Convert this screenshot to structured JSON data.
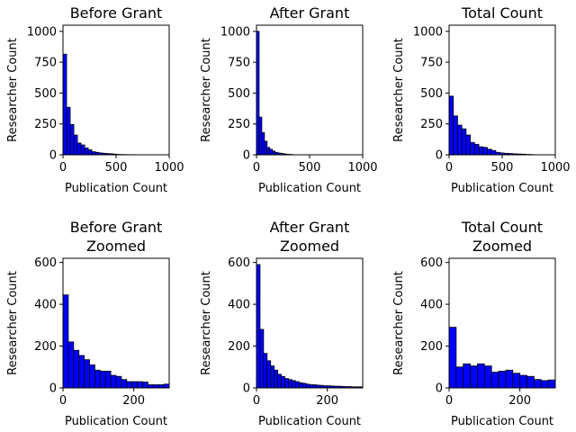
{
  "figure": {
    "bar_color": "#0000ff",
    "edge_color": "#000000"
  },
  "chart_data": [
    {
      "type": "bar",
      "title": [
        "Before Grant"
      ],
      "xlabel": "Publication Count",
      "ylabel": "Researcher Count",
      "xlim": [
        0,
        1000
      ],
      "ylim": [
        0,
        1050
      ],
      "xticks": [
        0,
        500,
        1000
      ],
      "yticks": [
        0,
        250,
        500,
        750,
        1000
      ],
      "bin_width": 34,
      "values": [
        815,
        385,
        245,
        160,
        95,
        80,
        55,
        40,
        25,
        20,
        15,
        12,
        10,
        8,
        5,
        3,
        2,
        2,
        1,
        1
      ]
    },
    {
      "type": "bar",
      "title": [
        "After Grant"
      ],
      "xlabel": "Publication Count",
      "ylabel": "Researcher Count",
      "xlim": [
        0,
        1000
      ],
      "ylim": [
        0,
        1050
      ],
      "xticks": [
        0,
        500,
        1000
      ],
      "yticks": [
        0,
        250,
        500,
        750,
        1000
      ],
      "bin_width": 25,
      "values": [
        1000,
        305,
        180,
        110,
        60,
        45,
        30,
        20,
        15,
        12,
        8,
        5,
        3,
        2
      ]
    },
    {
      "type": "bar",
      "title": [
        "Total Count"
      ],
      "xlabel": "Publication Count",
      "ylabel": "Researcher Count",
      "xlim": [
        0,
        1000
      ],
      "ylim": [
        0,
        1050
      ],
      "xticks": [
        0,
        500,
        1000
      ],
      "yticks": [
        0,
        250,
        500,
        750,
        1000
      ],
      "bin_width": 40,
      "values": [
        475,
        315,
        240,
        210,
        160,
        100,
        85,
        65,
        60,
        45,
        35,
        20,
        15,
        12,
        10,
        8,
        6,
        5,
        3,
        2
      ]
    },
    {
      "type": "bar",
      "title": [
        "Before Grant",
        "Zoomed"
      ],
      "xlabel": "Publication Count",
      "ylabel": "Researcher Count",
      "xlim": [
        0,
        300
      ],
      "ylim": [
        0,
        620
      ],
      "xticks": [
        0,
        200
      ],
      "yticks": [
        0,
        200,
        400,
        600
      ],
      "bin_width": 15,
      "values": [
        445,
        220,
        180,
        155,
        135,
        110,
        85,
        80,
        80,
        60,
        55,
        40,
        30,
        30,
        30,
        28,
        15,
        15,
        15,
        18
      ]
    },
    {
      "type": "bar",
      "title": [
        "After Grant",
        "Zoomed"
      ],
      "xlabel": "Publication Count",
      "ylabel": "Researcher Count",
      "xlim": [
        0,
        300
      ],
      "ylim": [
        0,
        620
      ],
      "xticks": [
        0,
        200
      ],
      "yticks": [
        0,
        200,
        400,
        600
      ],
      "bin_width": 10,
      "values": [
        590,
        280,
        165,
        130,
        105,
        85,
        65,
        55,
        45,
        40,
        35,
        30,
        25,
        22,
        18,
        15,
        15,
        13,
        12,
        10,
        10,
        9,
        8,
        8,
        7,
        6,
        6,
        5,
        5,
        5
      ]
    },
    {
      "type": "bar",
      "title": [
        "Total Count",
        "Zoomed"
      ],
      "xlabel": "Publication Count",
      "ylabel": "Researcher Count",
      "xlim": [
        0,
        300
      ],
      "ylim": [
        0,
        620
      ],
      "xticks": [
        0,
        200
      ],
      "yticks": [
        0,
        200,
        400,
        600
      ],
      "bin_width": 20,
      "values": [
        290,
        100,
        115,
        105,
        115,
        105,
        75,
        80,
        85,
        70,
        60,
        55,
        40,
        35,
        38
      ]
    }
  ]
}
